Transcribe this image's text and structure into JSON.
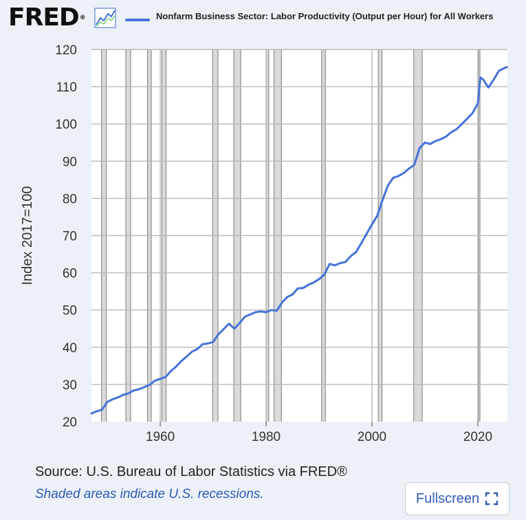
{
  "header": {
    "logo_text": "FRED",
    "logo_mark": "®",
    "graph_icon": "line-graph-icon",
    "legend_label": "Nonfarm Business Sector: Labor Productivity (Output per Hour) for All Workers",
    "legend_color": "#4572d9"
  },
  "footer": {
    "source": "Source: U.S. Bureau of Labor Statistics via FRED®",
    "note": "Shaded areas indicate U.S. recessions.",
    "fullscreen_label": "Fullscreen",
    "fullscreen_icon": "fullscreen-icon"
  },
  "chart_data": {
    "type": "line",
    "title": "Nonfarm Business Sector: Labor Productivity (Output per Hour) for All Workers",
    "xlabel": "",
    "ylabel": "Index 2017=100",
    "xlim": [
      1947.0,
      2025.6
    ],
    "ylim": [
      20,
      120
    ],
    "x_ticks": [
      1960,
      1980,
      2000,
      2020
    ],
    "x_tick_labels": [
      "1960",
      "1980",
      "2000",
      "2020"
    ],
    "y_ticks": [
      20,
      30,
      40,
      50,
      60,
      70,
      80,
      90,
      100,
      110,
      120
    ],
    "y_tick_labels": [
      "20",
      "30",
      "40",
      "50",
      "60",
      "70",
      "80",
      "90",
      "100",
      "110",
      "120"
    ],
    "grid": true,
    "recessions": [
      [
        1948.9,
        1949.8
      ],
      [
        1953.5,
        1954.4
      ],
      [
        1957.6,
        1958.3
      ],
      [
        1960.3,
        1961.1
      ],
      [
        1969.9,
        1970.9
      ],
      [
        1973.9,
        1975.2
      ],
      [
        1980.0,
        1980.5
      ],
      [
        1981.5,
        1982.9
      ],
      [
        1990.5,
        1991.2
      ],
      [
        2001.2,
        2001.9
      ],
      [
        2007.9,
        2009.5
      ],
      [
        2020.1,
        2020.4
      ]
    ],
    "series": [
      {
        "name": "Nonfarm Business Sector: Labor Productivity (Output per Hour) for All Workers",
        "color": "#4572d9",
        "x": [
          1947.0,
          1948.0,
          1949.0,
          1950.0,
          1951.0,
          1952.0,
          1953.0,
          1954.0,
          1955.0,
          1956.0,
          1957.0,
          1958.0,
          1959.0,
          1960.0,
          1961.0,
          1962.0,
          1963.0,
          1964.0,
          1965.0,
          1966.0,
          1967.0,
          1968.0,
          1969.0,
          1970.0,
          1971.0,
          1972.0,
          1973.0,
          1974.0,
          1975.0,
          1976.0,
          1977.0,
          1978.0,
          1979.0,
          1980.0,
          1981.0,
          1982.0,
          1983.0,
          1984.0,
          1985.0,
          1986.0,
          1987.0,
          1988.0,
          1989.0,
          1990.0,
          1991.0,
          1992.0,
          1993.0,
          1994.0,
          1995.0,
          1996.0,
          1997.0,
          1998.0,
          1999.0,
          2000.0,
          2001.0,
          2002.0,
          2003.0,
          2004.0,
          2005.0,
          2006.0,
          2007.0,
          2008.0,
          2009.0,
          2010.0,
          2011.0,
          2012.0,
          2013.0,
          2014.0,
          2015.0,
          2016.0,
          2017.0,
          2018.0,
          2019.0,
          2020.0,
          2020.5,
          2021.0,
          2022.0,
          2023.0,
          2024.0,
          2025.0,
          2025.5
        ],
        "y": [
          22.2,
          22.8,
          23.2,
          25.3,
          26.0,
          26.5,
          27.2,
          27.6,
          28.4,
          28.7,
          29.3,
          29.9,
          31.0,
          31.5,
          32.0,
          33.6,
          34.8,
          36.3,
          37.5,
          38.8,
          39.5,
          40.8,
          41.0,
          41.4,
          43.5,
          44.9,
          46.3,
          45.0,
          46.5,
          48.2,
          48.8,
          49.4,
          49.6,
          49.4,
          50.0,
          49.8,
          52.0,
          53.5,
          54.2,
          55.8,
          55.9,
          56.8,
          57.4,
          58.3,
          59.5,
          62.4,
          62.0,
          62.6,
          62.9,
          64.5,
          65.6,
          68.0,
          70.5,
          73.0,
          75.3,
          79.5,
          83.4,
          85.5,
          86.0,
          86.8,
          88.0,
          89.0,
          93.5,
          95.0,
          94.6,
          95.4,
          95.9,
          96.6,
          97.8,
          98.6,
          100.0,
          101.4,
          102.9,
          105.5,
          112.5,
          112.0,
          109.8,
          111.9,
          114.3,
          115.0,
          115.3
        ]
      }
    ]
  }
}
